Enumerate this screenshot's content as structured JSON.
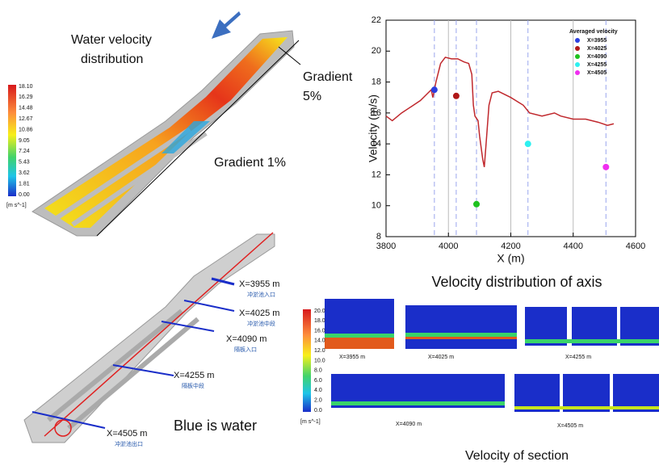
{
  "chart_data": {
    "type": "line",
    "xlabel": "X (m)",
    "ylabel": "Velocity (m/s)",
    "xlim": [
      3800,
      4600
    ],
    "xticks": [
      3800,
      4000,
      4200,
      4400,
      4600
    ],
    "ylim": [
      8,
      22
    ],
    "yticks": [
      8,
      10,
      12,
      14,
      16,
      18,
      20,
      22
    ],
    "grid": true,
    "color": "#c0282d",
    "x": [
      3800,
      3820,
      3850,
      3880,
      3910,
      3930,
      3945,
      3950,
      3960,
      3975,
      3990,
      4010,
      4030,
      4050,
      4065,
      4075,
      4080,
      4085,
      4095,
      4100,
      4110,
      4115,
      4120,
      4130,
      4140,
      4160,
      4200,
      4240,
      4260,
      4300,
      4340,
      4360,
      4400,
      4440,
      4480,
      4510,
      4530
    ],
    "values": [
      15.8,
      15.5,
      16.0,
      16.4,
      16.8,
      17.2,
      17.5,
      17.0,
      18.0,
      19.2,
      19.6,
      19.5,
      19.5,
      19.3,
      19.2,
      18.5,
      16.5,
      15.8,
      15.5,
      14.5,
      13.0,
      12.5,
      13.8,
      16.5,
      17.3,
      17.4,
      17.0,
      16.5,
      16.0,
      15.8,
      16.0,
      15.8,
      15.6,
      15.6,
      15.4,
      15.2,
      15.3
    ],
    "legend_title": "Averaged velocity",
    "legend": "upper right",
    "markers": [
      {
        "name": "X=3955",
        "color": "#2b3ee0",
        "x": 3955,
        "value": 17.5
      },
      {
        "name": "X=4025",
        "color": "#b01818",
        "x": 4025,
        "value": 17.1
      },
      {
        "name": "X=4090",
        "color": "#1fc21f",
        "x": 4090,
        "value": 10.1
      },
      {
        "name": "X=4255",
        "color": "#2ef0f0",
        "x": 4255,
        "value": 14.0
      },
      {
        "name": "X=4505",
        "color": "#f02ef0",
        "x": 4505,
        "value": 12.5
      }
    ]
  },
  "figure": {
    "top_left": {
      "title_lines": [
        "Water velocity",
        "distribution"
      ],
      "gradient_steep": [
        "Gradient",
        "5%"
      ],
      "gradient_mild": "Gradient 1%",
      "colorbar": [
        "18.10",
        "16.29",
        "14.48",
        "12.67",
        "10.86",
        "9.05",
        "7.24",
        "5.43",
        "3.62",
        "1.81",
        "0.00"
      ],
      "unit": "[m s^-1]"
    },
    "axis_caption": "Velocity distribution of axis",
    "bottom_left": {
      "sections": [
        {
          "label": "X=3955 m",
          "note": "冲淤池入口"
        },
        {
          "label": "X=4025 m",
          "note": "冲淤池中段"
        },
        {
          "label": "X=4090 m",
          "note": "隔板入口"
        },
        {
          "label": "X=4255 m",
          "note": "隔板中段"
        },
        {
          "label": "X=4505 m",
          "note": "冲淤池出口"
        }
      ],
      "caption": "Blue is water"
    },
    "bottom_right": {
      "colorbar": [
        "20.0",
        "18.0",
        "16.0",
        "14.0",
        "12.0",
        "10.0",
        "8.0",
        "6.0",
        "4.0",
        "2.0",
        "0.0"
      ],
      "unit": "[m s^-1]",
      "panels": [
        "X=3955 m",
        "X=4025 m",
        "X=4255 m",
        "X=4090 m",
        "X=4505 m"
      ],
      "caption": "Velocity of section"
    }
  }
}
